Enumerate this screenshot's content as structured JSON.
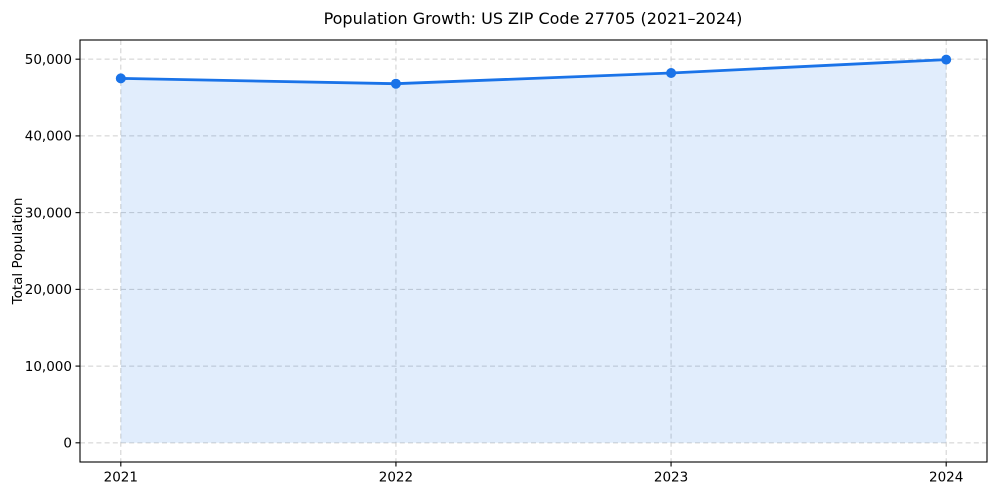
{
  "chart_data": {
    "type": "line",
    "title": "Population Growth: US ZIP Code 27705 (2021–2024)",
    "xlabel": "",
    "ylabel": "Total Population",
    "x": [
      2021,
      2022,
      2023,
      2024
    ],
    "xtick_labels": [
      "2021",
      "2022",
      "2023",
      "2024"
    ],
    "series": [
      {
        "name": "Total Population",
        "values": [
          47500,
          46800,
          48200,
          49950
        ],
        "color": "#1a73e8",
        "fill_opacity": 0.13,
        "fill_baseline": 0,
        "marker": "circle"
      }
    ],
    "yticks": [
      0,
      10000,
      20000,
      30000,
      40000,
      50000
    ],
    "ytick_labels": [
      "0",
      "10,000",
      "20,000",
      "30,000",
      "40,000",
      "50,000"
    ],
    "ylim": [
      -2500,
      52500
    ],
    "x_margin": 0.045,
    "grid": true,
    "grid_style": "dashed",
    "grid_color": "#cfcfcf",
    "legend": "none",
    "background_color": "#ffffff",
    "frame": "box"
  }
}
